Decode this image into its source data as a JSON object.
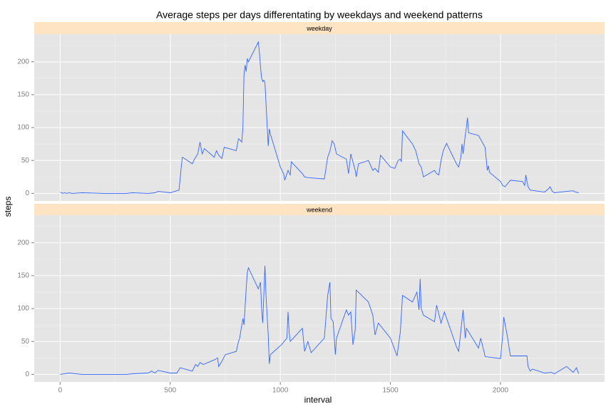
{
  "chart_data": {
    "type": "line",
    "title": "Average steps per days differentating by weekdays and weekend patterns",
    "x_label": "interval",
    "y_label": "steps",
    "color": "#3366ff",
    "xlim": [
      -117.75,
      2472.75
    ],
    "xticks": [
      0,
      500,
      1000,
      1500,
      2000
    ],
    "x_minor": [
      250,
      750,
      1250,
      1750,
      2250
    ],
    "ylim": [
      -11.5,
      241.9
    ],
    "yticks": [
      0,
      50,
      100,
      150,
      200
    ],
    "y_minor": [
      25,
      75,
      125,
      175,
      225
    ],
    "grid": true,
    "facets": [
      {
        "label": "weekday",
        "x": [
          0,
          10,
          20,
          30,
          40,
          55,
          100,
          200,
          300,
          330,
          400,
          430,
          445,
          500,
          520,
          540,
          550,
          555,
          600,
          610,
          625,
          635,
          645,
          655,
          700,
          710,
          720,
          735,
          745,
          800,
          810,
          820,
          825,
          830,
          835,
          840,
          845,
          850,
          855,
          900,
          905,
          910,
          915,
          920,
          925,
          930,
          945,
          950,
          955,
          1000,
          1010,
          1015,
          1020,
          1035,
          1045,
          1050,
          1100,
          1110,
          1125,
          1200,
          1205,
          1215,
          1225,
          1235,
          1245,
          1255,
          1300,
          1310,
          1320,
          1340,
          1345,
          1355,
          1400,
          1420,
          1430,
          1445,
          1455,
          1500,
          1520,
          1535,
          1545,
          1550,
          1555,
          1600,
          1615,
          1630,
          1640,
          1650,
          1700,
          1710,
          1720,
          1730,
          1740,
          1755,
          1800,
          1810,
          1820,
          1825,
          1830,
          1840,
          1845,
          1850,
          1855,
          1900,
          1930,
          1940,
          1945,
          1950,
          2000,
          2010,
          2020,
          2030,
          2045,
          2100,
          2110,
          2115,
          2125,
          2135,
          2200,
          2215,
          2225,
          2235,
          2245,
          2300,
          2330,
          2340,
          2355
        ],
        "values": [
          2,
          0,
          1,
          0,
          1,
          0,
          1,
          0,
          0,
          1,
          0,
          1,
          3,
          1,
          3,
          5,
          40,
          55,
          45,
          52,
          60,
          78,
          60,
          68,
          55,
          65,
          58,
          53,
          70,
          65,
          83,
          80,
          78,
          100,
          180,
          195,
          185,
          205,
          200,
          230,
          215,
          192,
          175,
          170,
          172,
          168,
          72,
          98,
          90,
          40,
          33,
          30,
          20,
          35,
          28,
          48,
          30,
          25,
          24,
          22,
          33,
          55,
          64,
          80,
          75,
          60,
          52,
          30,
          60,
          35,
          25,
          45,
          50,
          35,
          38,
          32,
          58,
          40,
          38,
          50,
          52,
          48,
          95,
          75,
          65,
          45,
          40,
          25,
          35,
          30,
          28,
          50,
          65,
          76,
          45,
          40,
          55,
          75,
          60,
          88,
          100,
          115,
          92,
          88,
          70,
          35,
          42,
          32,
          18,
          12,
          10,
          14,
          20,
          18,
          12,
          28,
          10,
          5,
          2,
          6,
          10,
          3,
          1,
          3,
          4,
          2,
          1
        ]
      },
      {
        "label": "weekend",
        "x": [
          0,
          40,
          100,
          300,
          330,
          400,
          415,
          430,
          445,
          500,
          530,
          545,
          600,
          615,
          625,
          635,
          650,
          700,
          715,
          720,
          735,
          750,
          800,
          810,
          815,
          830,
          835,
          845,
          850,
          855,
          900,
          910,
          915,
          920,
          930,
          935,
          945,
          950,
          955,
          1005,
          1030,
          1035,
          1040,
          1045,
          1100,
          1110,
          1125,
          1140,
          1200,
          1215,
          1225,
          1230,
          1240,
          1250,
          1255,
          1300,
          1310,
          1320,
          1330,
          1340,
          1345,
          1400,
          1420,
          1430,
          1445,
          1500,
          1530,
          1545,
          1555,
          1600,
          1620,
          1630,
          1635,
          1640,
          1650,
          1700,
          1710,
          1730,
          1745,
          1800,
          1810,
          1830,
          1840,
          1845,
          1900,
          1910,
          1925,
          1930,
          2000,
          2010,
          2015,
          2030,
          2040,
          2045,
          2100,
          2120,
          2125,
          2135,
          2145,
          2200,
          2230,
          2245,
          2300,
          2330,
          2345,
          2355
        ],
        "values": [
          0,
          2,
          0,
          0,
          1,
          2,
          5,
          2,
          6,
          2,
          2,
          10,
          5,
          15,
          12,
          18,
          15,
          22,
          25,
          12,
          20,
          30,
          35,
          50,
          55,
          85,
          75,
          130,
          155,
          162,
          130,
          140,
          100,
          78,
          165,
          120,
          60,
          16,
          30,
          45,
          55,
          95,
          65,
          50,
          70,
          35,
          50,
          33,
          55,
          120,
          140,
          85,
          80,
          30,
          55,
          98,
          90,
          95,
          45,
          68,
          128,
          110,
          90,
          60,
          78,
          55,
          28,
          65,
          120,
          110,
          125,
          98,
          145,
          100,
          90,
          80,
          105,
          78,
          95,
          42,
          35,
          98,
          55,
          70,
          40,
          55,
          35,
          27,
          24,
          60,
          87,
          60,
          38,
          28,
          28,
          28,
          12,
          5,
          8,
          2,
          3,
          1,
          12,
          3,
          10,
          1
        ]
      }
    ]
  }
}
